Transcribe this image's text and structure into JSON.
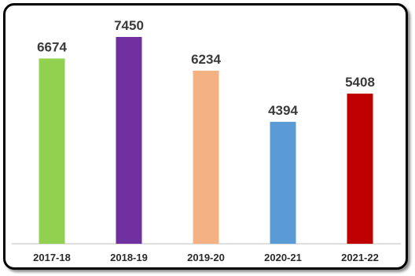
{
  "chart_data": {
    "type": "bar",
    "categories": [
      "2017-18",
      "2018-19",
      "2019-20",
      "2020-21",
      "2021-22"
    ],
    "values": [
      6674,
      7450,
      6234,
      4394,
      5408
    ],
    "colors": [
      "#92d050",
      "#7030a0",
      "#f4b183",
      "#5b9bd5",
      "#c00000"
    ],
    "title": "",
    "xlabel": "",
    "ylabel": "",
    "ylim": [
      0,
      7450
    ],
    "grid": false,
    "legend": "none",
    "data_labels": true
  }
}
